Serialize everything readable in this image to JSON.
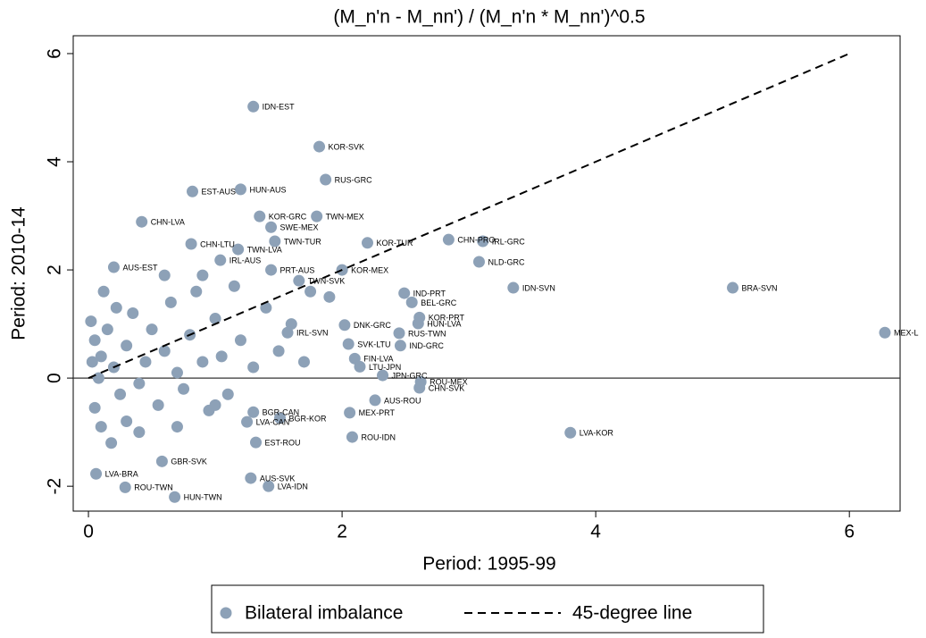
{
  "chart_data": {
    "type": "scatter",
    "title": "(M_n'n - M_nn') / (M_n'n * M_nn')^0.5",
    "xlabel": "Period: 1995-99",
    "ylabel": "Period: 2010-14",
    "xlim": [
      -0.12,
      6.4
    ],
    "ylim": [
      -2.46,
      6.33
    ],
    "xticks": [
      0,
      2,
      4,
      6
    ],
    "yticks": [
      -2,
      0,
      2,
      4,
      6
    ],
    "hlines": [
      0
    ],
    "series": [
      {
        "name": "Bilateral imbalance",
        "color": "#8da1b7",
        "x": [
          1.3,
          1.82,
          1.87,
          0.82,
          1.2,
          0.42,
          1.35,
          1.8,
          1.44,
          0.81,
          1.18,
          1.47,
          2.2,
          2.84,
          3.11,
          3.08,
          3.35,
          5.08,
          6.28,
          3.8,
          2.08,
          2.26,
          2.62,
          2.61,
          2.32,
          2.46,
          2.1,
          2.14,
          2.61,
          2.6,
          2.55,
          2.49,
          1.32,
          1.28,
          1.42,
          0.68,
          0.29,
          0.06,
          0.58,
          1.25,
          1.51,
          1.3,
          2.06,
          1.04,
          1.44,
          0.2,
          2.0,
          1.66,
          2.02,
          2.45,
          1.57,
          2.05,
          0.02,
          0.05,
          0.1,
          0.15,
          0.2,
          0.25,
          0.3,
          0.35,
          0.4,
          0.45,
          0.5,
          0.55,
          0.6,
          0.65,
          0.7,
          0.75,
          0.8,
          0.85,
          0.9,
          0.95,
          1.0,
          1.05,
          1.1,
          1.15,
          1.2,
          1.3,
          1.4,
          1.5,
          1.6,
          1.7,
          0.05,
          0.1,
          0.18,
          0.3,
          0.12,
          0.22,
          0.03,
          0.08,
          0.6,
          0.9,
          1.9,
          1.75,
          0.4,
          0.7,
          1.0
        ],
        "values": [
          5.02,
          4.28,
          3.67,
          3.45,
          3.49,
          2.89,
          2.99,
          2.99,
          2.79,
          2.48,
          2.38,
          2.53,
          2.5,
          2.56,
          2.53,
          2.15,
          1.67,
          1.67,
          0.84,
          -1.01,
          -1.09,
          -0.41,
          -0.07,
          -0.18,
          0.05,
          0.6,
          0.36,
          0.21,
          1.12,
          1.01,
          1.4,
          1.57,
          -1.19,
          -1.85,
          -2.0,
          -2.2,
          -2.02,
          -1.77,
          -1.54,
          -0.81,
          -0.74,
          -0.63,
          -0.64,
          2.18,
          2.0,
          2.05,
          2.0,
          1.8,
          0.98,
          0.83,
          0.84,
          0.63,
          1.05,
          0.7,
          0.4,
          0.9,
          0.2,
          -0.3,
          0.6,
          1.2,
          -0.1,
          0.3,
          0.9,
          -0.5,
          0.5,
          1.4,
          0.1,
          -0.2,
          0.8,
          1.6,
          0.3,
          -0.6,
          1.1,
          0.4,
          -0.3,
          1.7,
          0.7,
          0.2,
          1.3,
          0.5,
          1.0,
          0.3,
          -0.55,
          -0.9,
          -1.2,
          -0.8,
          1.6,
          1.3,
          0.3,
          0.0,
          1.9,
          1.9,
          1.5,
          1.6,
          -1.0,
          -0.9,
          -0.5
        ],
        "labels": [
          "IDN-EST",
          "KOR-SVK",
          "RUS-GRC",
          "EST-AUS",
          "HUN-AUS",
          "CHN-LVA",
          "KOR-GRC",
          "TWN-MEX",
          "SWE-MEX",
          "CHN-LTU",
          "TWN-LVA",
          "TWN-TUR",
          "KOR-TUR",
          "CHN-PRO",
          "IRL-GRC",
          "NLD-GRC",
          "IDN-SVN",
          "BRA-SVN",
          "MEX-L",
          "LVA-KOR",
          "ROU-IDN",
          "AUS-ROU",
          "ROU-MEX",
          "CHN-SVK",
          "JPN-GRC",
          "IND-GRC",
          "FIN-LVA",
          "LTU-JPN",
          "KOR-PRT",
          "HUN-LVA",
          "BEL-GRC",
          "IND-PRT",
          "EST-ROU",
          "AUS-SVK",
          "LVA-IDN",
          "HUN-TWN",
          "ROU-TWN",
          "LVA-BRA",
          "GBR-SVK",
          "LVA-CAN",
          "BGR-KOR",
          "BGR-CAN",
          "MEX-PRT",
          "IRL-AUS",
          "PRT-AUS",
          "AUS-EST",
          "KOR-MEX",
          "TWN-SVK",
          "DNK-GRC",
          "RUS-TWN",
          "IRL-SVN",
          "SVK-LTU",
          null,
          null,
          null,
          null,
          null,
          null,
          null,
          null,
          null,
          null,
          null,
          null,
          null,
          null,
          null,
          null,
          null,
          null,
          null,
          null,
          null,
          null,
          null,
          null,
          null,
          null,
          null,
          null,
          null,
          null,
          null,
          null,
          null,
          null,
          null,
          null,
          null,
          null,
          null,
          null,
          null,
          null,
          null,
          null,
          null
        ]
      }
    ],
    "reference_line": {
      "name": "45-degree line",
      "color": "#000000",
      "x": [
        0,
        6
      ],
      "values": [
        0,
        6
      ]
    }
  }
}
